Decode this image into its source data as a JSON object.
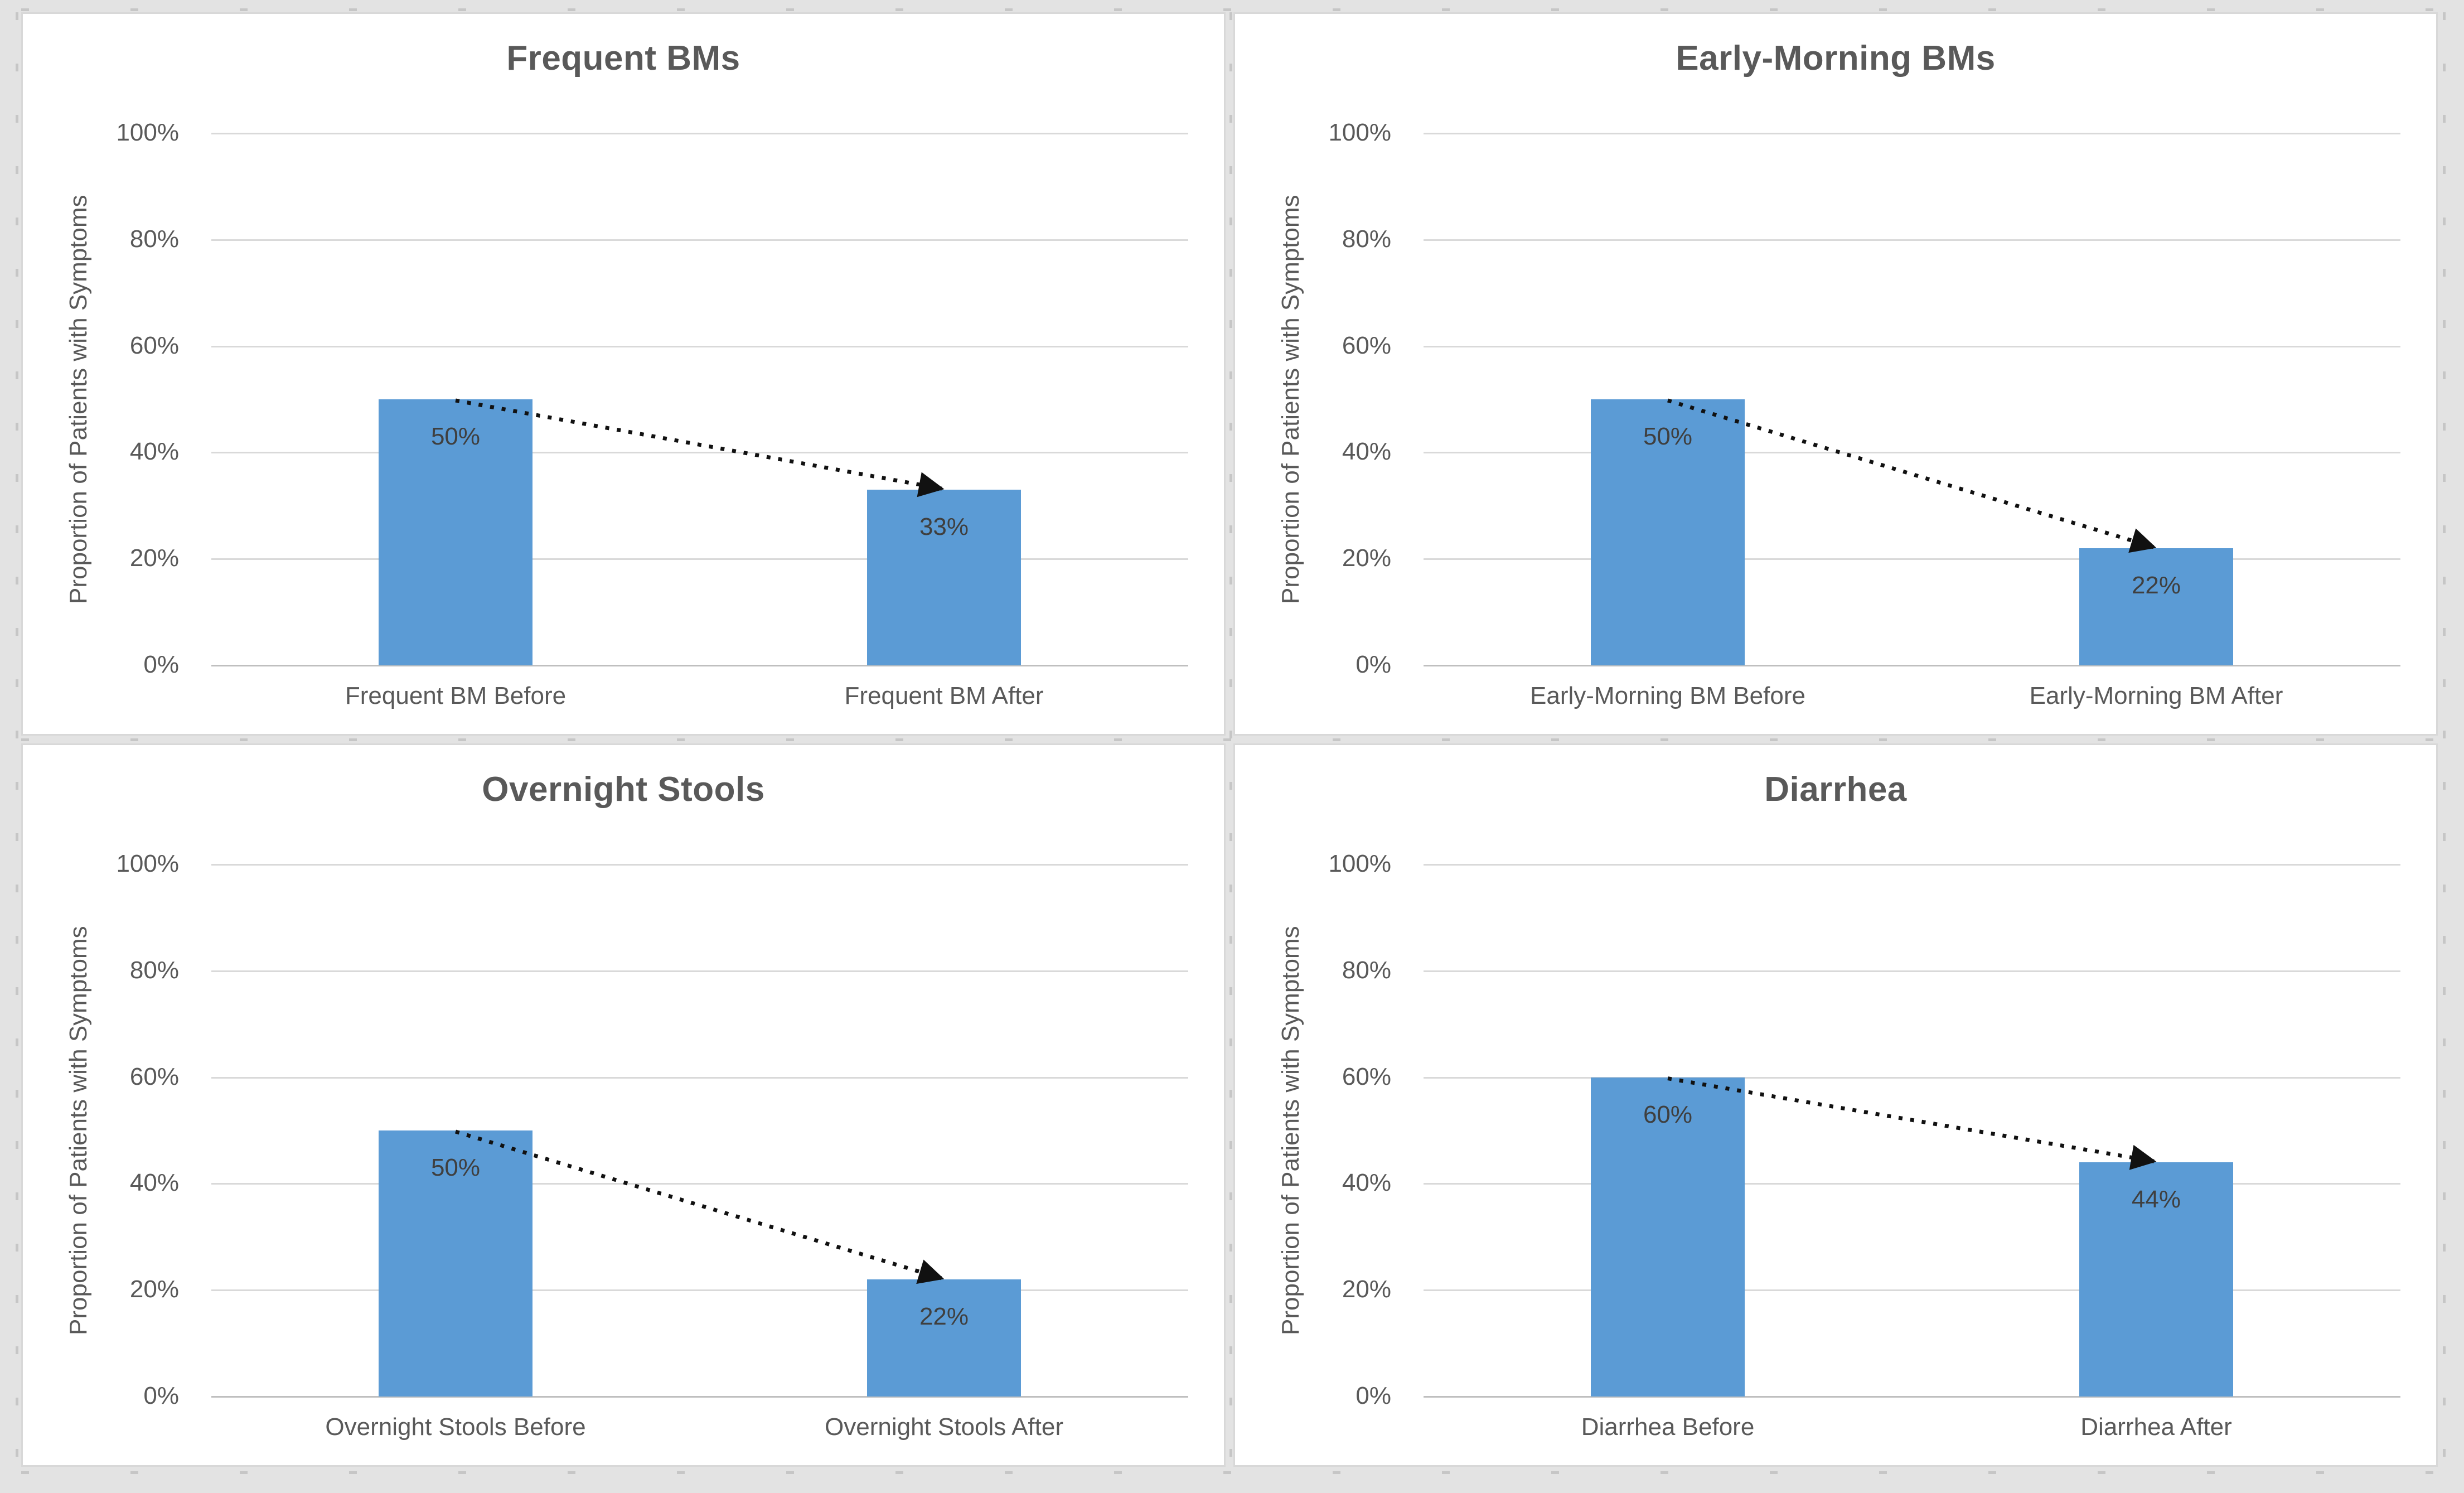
{
  "page": {
    "background_color": "#E3E3E3",
    "panel_background": "#FFFFFF",
    "panel_border_color": "#D8D8D8"
  },
  "colors": {
    "bar": "#5B9BD5",
    "gridline": "#D9D9D9",
    "axis_line": "#BFBFBF",
    "title_text": "#595959",
    "axis_text": "#595959",
    "data_label_text": "#3F3F3F",
    "arrow": "#111111"
  },
  "chart_data": [
    {
      "type": "bar",
      "title": "Frequent BMs",
      "categories": [
        "Frequent BM Before",
        "Frequent BM After"
      ],
      "values": [
        50,
        33
      ],
      "data_labels": [
        "50%",
        "33%"
      ],
      "ylabel": "Proportion of Patients with Symptoms",
      "ytick_labels": [
        "100%",
        "80%",
        "60%",
        "40%",
        "20%",
        "0%"
      ],
      "ytick_values": [
        100,
        80,
        60,
        40,
        20,
        0
      ],
      "ylim": [
        0,
        100
      ],
      "grid": true,
      "legend": "none",
      "annotation": "dotted arrow declining from top of first bar to top of second bar"
    },
    {
      "type": "bar",
      "title": "Early-Morning BMs",
      "categories": [
        "Early-Morning BM Before",
        "Early-Morning BM After"
      ],
      "values": [
        50,
        22
      ],
      "data_labels": [
        "50%",
        "22%"
      ],
      "ylabel": "Proportion of Patients with Symptoms",
      "ytick_labels": [
        "100%",
        "80%",
        "60%",
        "40%",
        "20%",
        "0%"
      ],
      "ytick_values": [
        100,
        80,
        60,
        40,
        20,
        0
      ],
      "ylim": [
        0,
        100
      ],
      "grid": true,
      "legend": "none",
      "annotation": "dotted arrow declining from top of first bar to top of second bar"
    },
    {
      "type": "bar",
      "title": "Overnight Stools",
      "categories": [
        "Overnight Stools Before",
        "Overnight Stools After"
      ],
      "values": [
        50,
        22
      ],
      "data_labels": [
        "50%",
        "22%"
      ],
      "ylabel": "Proportion of Patients with Symptoms",
      "ytick_labels": [
        "100%",
        "80%",
        "60%",
        "40%",
        "20%",
        "0%"
      ],
      "ytick_values": [
        100,
        80,
        60,
        40,
        20,
        0
      ],
      "ylim": [
        0,
        100
      ],
      "grid": true,
      "legend": "none",
      "annotation": "dotted arrow declining from top of first bar to top of second bar"
    },
    {
      "type": "bar",
      "title": "Diarrhea",
      "categories": [
        "Diarrhea Before",
        "Diarrhea After"
      ],
      "values": [
        60,
        44
      ],
      "data_labels": [
        "60%",
        "44%"
      ],
      "ylabel": "Proportion of Patients with Symptoms",
      "ytick_labels": [
        "100%",
        "80%",
        "60%",
        "40%",
        "20%",
        "0%"
      ],
      "ytick_values": [
        100,
        80,
        60,
        40,
        20,
        0
      ],
      "ylim": [
        0,
        100
      ],
      "grid": true,
      "legend": "none",
      "annotation": "dotted arrow declining from top of first bar to top of second bar"
    }
  ]
}
